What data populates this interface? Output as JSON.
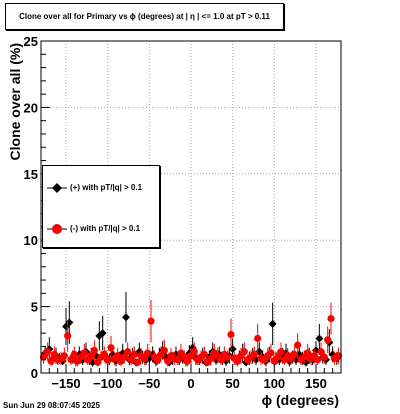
{
  "title": "Clone  over all for Primary vs ϕ (degrees) at |  η  | <= 1.0 at pT > 0.11",
  "timestamp": "Sun Jun 29 08:07:45 2025",
  "chart_data": {
    "type": "scatter",
    "title": "Clone  over all for Primary vs ϕ (degrees) at |  η  | <= 1.0 at pT > 0.11",
    "xlabel": "ϕ (degrees)",
    "ylabel": "Clone  over all (%)",
    "xlim": [
      -180,
      180
    ],
    "ylim": [
      0,
      25
    ],
    "xticks": [
      -150,
      -100,
      -50,
      0,
      50,
      100,
      150
    ],
    "xtick_labels": [
      "−150",
      "−100",
      "−50",
      "0",
      "50",
      "100",
      "150"
    ],
    "yticks": [
      0,
      5,
      10,
      15,
      20,
      25
    ],
    "ytick_labels": [
      "0",
      "5",
      "10",
      "15",
      "20",
      "25"
    ],
    "grid": true,
    "legend_position": "middle-left",
    "series": [
      {
        "name": "(+) with pT/|q| > 0.1",
        "color": "#000000",
        "marker": "diamond",
        "x": [
          -175,
          -170,
          -166,
          -162,
          -158,
          -154,
          -150,
          -146,
          -142,
          -138,
          -134,
          -130,
          -126,
          -122,
          -118,
          -114,
          -110,
          -106,
          -102,
          -98,
          -94,
          -90,
          -86,
          -82,
          -78,
          -74,
          -70,
          -66,
          -62,
          -58,
          -54,
          -50,
          -46,
          -42,
          -38,
          -34,
          -30,
          -26,
          -22,
          -18,
          -14,
          -10,
          -6,
          -2,
          2,
          6,
          10,
          14,
          18,
          22,
          26,
          30,
          34,
          38,
          42,
          46,
          50,
          54,
          58,
          62,
          66,
          70,
          74,
          78,
          82,
          86,
          90,
          94,
          98,
          102,
          106,
          110,
          114,
          118,
          122,
          126,
          130,
          134,
          138,
          142,
          146,
          150,
          154,
          158,
          162,
          166,
          170,
          175
        ],
        "y": [
          1.5,
          1.8,
          1.0,
          1.3,
          1.1,
          0.9,
          3.5,
          3.8,
          1.2,
          0.9,
          1.4,
          1.0,
          1.6,
          1.1,
          0.8,
          1.3,
          2.8,
          3.0,
          1.2,
          1.0,
          1.4,
          0.9,
          1.1,
          1.5,
          4.2,
          1.0,
          1.3,
          0.8,
          1.6,
          1.2,
          1.0,
          1.1,
          1.4,
          0.9,
          1.3,
          1.7,
          1.2,
          0.8,
          1.1,
          1.4,
          1.0,
          1.2,
          0.9,
          1.5,
          1.9,
          1.1,
          1.0,
          1.3,
          0.8,
          1.2,
          1.6,
          1.0,
          1.4,
          1.1,
          0.9,
          1.3,
          1.8,
          1.0,
          1.2,
          1.5,
          0.8,
          1.1,
          1.3,
          1.0,
          1.6,
          1.2,
          0.9,
          1.4,
          3.7,
          1.1,
          1.0,
          1.3,
          1.5,
          0.9,
          1.2,
          1.0,
          1.4,
          1.1,
          0.8,
          1.3,
          1.0,
          1.7,
          2.6,
          1.2,
          1.0,
          2.3,
          1.4,
          1.1
        ],
        "yerr": [
          0.5,
          0.9,
          0.4,
          0.6,
          0.4,
          0.3,
          1.4,
          1.6,
          0.5,
          0.4,
          0.6,
          0.4,
          0.7,
          0.5,
          0.3,
          0.6,
          1.1,
          1.3,
          0.5,
          0.4,
          0.6,
          0.4,
          0.5,
          0.7,
          1.9,
          0.4,
          0.6,
          0.3,
          0.7,
          0.5,
          0.4,
          0.5,
          0.6,
          0.4,
          0.6,
          0.7,
          0.5,
          0.3,
          0.5,
          0.6,
          0.4,
          0.5,
          0.4,
          0.6,
          0.8,
          0.5,
          0.4,
          0.6,
          0.3,
          0.5,
          0.7,
          0.4,
          0.6,
          0.5,
          0.4,
          0.6,
          0.8,
          0.4,
          0.5,
          0.7,
          0.3,
          0.5,
          0.6,
          0.4,
          0.7,
          0.5,
          0.4,
          0.6,
          1.6,
          0.5,
          0.4,
          0.6,
          0.7,
          0.4,
          0.5,
          0.4,
          0.6,
          0.5,
          0.3,
          0.6,
          0.4,
          0.7,
          1.1,
          0.5,
          0.4,
          1.0,
          0.6,
          0.5
        ]
      },
      {
        "name": "(-) with pT/|q| > 0.1",
        "color": "#ff0000",
        "marker": "circle",
        "x": [
          -177,
          -172,
          -168,
          -164,
          -160,
          -156,
          -152,
          -148,
          -144,
          -140,
          -136,
          -132,
          -128,
          -124,
          -120,
          -116,
          -112,
          -108,
          -104,
          -100,
          -96,
          -92,
          -88,
          -84,
          -80,
          -76,
          -72,
          -68,
          -64,
          -60,
          -56,
          -52,
          -48,
          -44,
          -40,
          -36,
          -32,
          -28,
          -24,
          -20,
          -16,
          -12,
          -8,
          -4,
          0,
          4,
          8,
          12,
          16,
          20,
          24,
          28,
          32,
          36,
          40,
          44,
          48,
          52,
          56,
          60,
          64,
          68,
          72,
          76,
          80,
          84,
          88,
          92,
          96,
          100,
          104,
          108,
          112,
          116,
          120,
          124,
          128,
          132,
          136,
          140,
          144,
          148,
          152,
          156,
          160,
          164,
          168,
          172,
          177
        ],
        "y": [
          1.2,
          1.6,
          0.9,
          1.4,
          1.0,
          1.1,
          1.3,
          2.8,
          1.0,
          1.4,
          0.9,
          1.2,
          1.5,
          1.0,
          1.3,
          1.7,
          0.8,
          1.2,
          1.4,
          1.0,
          1.9,
          1.1,
          1.3,
          0.9,
          1.2,
          1.6,
          1.0,
          1.4,
          0.8,
          1.3,
          1.1,
          1.5,
          3.9,
          1.2,
          1.0,
          1.4,
          1.7,
          0.9,
          1.3,
          1.1,
          1.0,
          1.5,
          1.2,
          0.9,
          1.3,
          1.6,
          1.0,
          1.2,
          1.4,
          0.8,
          1.1,
          1.5,
          1.3,
          1.0,
          1.4,
          1.2,
          2.9,
          1.1,
          0.9,
          1.3,
          1.6,
          1.0,
          1.2,
          1.4,
          2.6,
          1.1,
          1.0,
          1.3,
          1.5,
          0.9,
          1.2,
          1.6,
          1.0,
          1.3,
          1.1,
          1.4,
          2.1,
          1.0,
          1.2,
          1.5,
          1.1,
          1.3,
          1.0,
          1.6,
          1.2,
          2.5,
          4.1,
          1.1,
          1.3
        ],
        "yerr": [
          0.5,
          0.7,
          0.4,
          0.6,
          0.4,
          0.5,
          0.6,
          1.2,
          0.4,
          0.6,
          0.4,
          0.5,
          0.7,
          0.4,
          0.6,
          0.8,
          0.3,
          0.5,
          0.6,
          0.4,
          0.9,
          0.5,
          0.6,
          0.4,
          0.5,
          0.7,
          0.4,
          0.6,
          0.3,
          0.6,
          0.5,
          0.7,
          1.6,
          0.5,
          0.4,
          0.6,
          0.8,
          0.4,
          0.6,
          0.5,
          0.4,
          0.7,
          0.5,
          0.4,
          0.6,
          0.7,
          0.4,
          0.5,
          0.6,
          0.3,
          0.5,
          0.7,
          0.6,
          0.4,
          0.6,
          0.5,
          1.2,
          0.5,
          0.4,
          0.6,
          0.7,
          0.4,
          0.5,
          0.6,
          1.1,
          0.5,
          0.4,
          0.6,
          0.7,
          0.4,
          0.5,
          0.7,
          0.4,
          0.6,
          0.5,
          0.6,
          0.9,
          0.4,
          0.5,
          0.7,
          0.5,
          0.6,
          0.4,
          0.7,
          0.5,
          1.0,
          1.2,
          0.5,
          0.6
        ]
      }
    ]
  }
}
